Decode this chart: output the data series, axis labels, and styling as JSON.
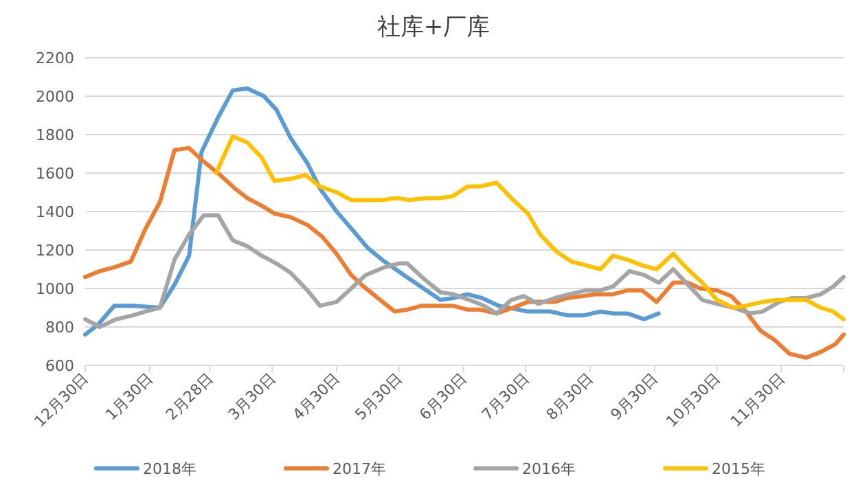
{
  "chart_data": {
    "type": "line",
    "title": "社库+厂库",
    "xlim": [
      "2017-12-30",
      "2018-12-30"
    ],
    "xticks": [
      {
        "value": "2017-12-30",
        "label": "12月30日"
      },
      {
        "value": "2018-01-30",
        "label": "1月30日"
      },
      {
        "value": "2018-02-28",
        "label": "2月28日"
      },
      {
        "value": "2018-03-30",
        "label": "3月30日"
      },
      {
        "value": "2018-04-30",
        "label": "4月30日"
      },
      {
        "value": "2018-05-30",
        "label": "5月30日"
      },
      {
        "value": "2018-06-30",
        "label": "6月30日"
      },
      {
        "value": "2018-07-30",
        "label": "7月30日"
      },
      {
        "value": "2018-08-30",
        "label": "8月30日"
      },
      {
        "value": "2018-09-30",
        "label": "9月30日"
      },
      {
        "value": "2018-10-30",
        "label": "10月30日"
      },
      {
        "value": "2018-11-30",
        "label": "11月30日"
      },
      {
        "value": "2018-12-30",
        "label": null
      }
    ],
    "ylim": [
      600,
      2200
    ],
    "yticks": [
      600,
      800,
      1000,
      1200,
      1400,
      1600,
      1800,
      2000,
      2200
    ],
    "grid": "y",
    "legend": "bottom",
    "line_style": "solid",
    "series": [
      {
        "name": "2018年",
        "color": "#5b9bd5",
        "x": [
          "2017-12-30",
          "2018-01-05",
          "2018-01-13",
          "2018-01-22",
          "2018-02-04",
          "2018-02-11",
          "2018-02-18",
          "2018-02-24",
          "2018-03-04",
          "2018-03-11",
          "2018-03-18",
          "2018-03-26",
          "2018-04-01",
          "2018-04-08",
          "2018-04-16",
          "2018-04-22",
          "2018-04-30",
          "2018-05-08",
          "2018-05-15",
          "2018-05-23",
          "2018-06-04",
          "2018-06-19",
          "2018-06-25",
          "2018-07-02",
          "2018-07-09",
          "2018-07-17",
          "2018-07-31",
          "2018-08-11",
          "2018-08-19",
          "2018-08-27",
          "2018-09-04",
          "2018-09-10",
          "2018-09-17",
          "2018-09-25",
          "2018-10-02"
        ],
        "values": [
          760,
          810,
          910,
          910,
          900,
          1020,
          1170,
          1710,
          1890,
          2030,
          2040,
          2000,
          1930,
          1780,
          1650,
          1520,
          1400,
          1300,
          1210,
          1140,
          1050,
          940,
          950,
          970,
          950,
          910,
          880,
          880,
          860,
          860,
          880,
          870,
          870,
          840,
          870
        ]
      },
      {
        "name": "2017年",
        "color": "#ed7d31",
        "x": [
          "2017-12-30",
          "2018-01-06",
          "2018-01-13",
          "2018-01-21",
          "2018-01-28",
          "2018-02-04",
          "2018-02-11",
          "2018-02-18",
          "2018-02-25",
          "2018-03-05",
          "2018-03-12",
          "2018-03-18",
          "2018-03-25",
          "2018-03-31",
          "2018-04-08",
          "2018-04-16",
          "2018-04-23",
          "2018-04-30",
          "2018-05-07",
          "2018-05-13",
          "2018-05-21",
          "2018-05-28",
          "2018-06-03",
          "2018-06-10",
          "2018-06-18",
          "2018-06-25",
          "2018-07-02",
          "2018-07-08",
          "2018-07-16",
          "2018-07-24",
          "2018-07-31",
          "2018-08-06",
          "2018-08-13",
          "2018-08-19",
          "2018-08-26",
          "2018-09-02",
          "2018-09-10",
          "2018-09-17",
          "2018-09-24",
          "2018-10-01",
          "2018-10-09",
          "2018-10-16",
          "2018-10-22",
          "2018-10-30",
          "2018-11-06",
          "2018-11-13",
          "2018-11-20",
          "2018-11-27",
          "2018-12-04",
          "2018-12-12",
          "2018-12-19",
          "2018-12-26",
          "2018-12-30"
        ],
        "values": [
          1060,
          1090,
          1110,
          1140,
          1310,
          1450,
          1720,
          1730,
          1660,
          1590,
          1520,
          1470,
          1430,
          1390,
          1370,
          1330,
          1270,
          1180,
          1070,
          1010,
          940,
          880,
          890,
          910,
          910,
          910,
          890,
          890,
          870,
          900,
          930,
          930,
          930,
          950,
          960,
          970,
          970,
          990,
          990,
          930,
          1030,
          1030,
          1000,
          990,
          960,
          880,
          780,
          730,
          660,
          640,
          670,
          710,
          760
        ]
      },
      {
        "name": "2016年",
        "color": "#a5a5a5",
        "x": [
          "2017-12-30",
          "2018-01-06",
          "2018-01-14",
          "2018-01-22",
          "2018-01-28",
          "2018-02-04",
          "2018-02-11",
          "2018-02-18",
          "2018-02-25",
          "2018-03-04",
          "2018-03-11",
          "2018-03-18",
          "2018-03-25",
          "2018-04-01",
          "2018-04-08",
          "2018-04-16",
          "2018-04-22",
          "2018-04-30",
          "2018-05-08",
          "2018-05-14",
          "2018-05-23",
          "2018-05-30",
          "2018-06-03",
          "2018-06-11",
          "2018-06-19",
          "2018-06-25",
          "2018-07-03",
          "2018-07-10",
          "2018-07-16",
          "2018-07-23",
          "2018-07-29",
          "2018-08-05",
          "2018-08-13",
          "2018-08-20",
          "2018-08-28",
          "2018-09-04",
          "2018-09-10",
          "2018-09-18",
          "2018-09-25",
          "2018-10-02",
          "2018-10-09",
          "2018-10-16",
          "2018-10-23",
          "2018-10-30",
          "2018-11-07",
          "2018-11-15",
          "2018-11-21",
          "2018-11-29",
          "2018-12-05",
          "2018-12-12",
          "2018-12-19",
          "2018-12-25",
          "2018-12-30"
        ],
        "values": [
          840,
          800,
          840,
          860,
          880,
          900,
          1150,
          1280,
          1380,
          1380,
          1250,
          1220,
          1170,
          1130,
          1080,
          990,
          910,
          930,
          1010,
          1070,
          1110,
          1130,
          1130,
          1050,
          980,
          970,
          940,
          910,
          870,
          940,
          960,
          920,
          950,
          970,
          990,
          990,
          1010,
          1090,
          1070,
          1030,
          1100,
          1020,
          940,
          920,
          900,
          870,
          880,
          930,
          950,
          950,
          970,
          1010,
          1060
        ]
      },
      {
        "name": "2015年",
        "color": "#ffc000",
        "x": [
          "2018-03-03",
          "2018-03-11",
          "2018-03-18",
          "2018-03-25",
          "2018-03-31",
          "2018-04-08",
          "2018-04-15",
          "2018-04-22",
          "2018-04-30",
          "2018-05-07",
          "2018-05-14",
          "2018-05-22",
          "2018-05-29",
          "2018-06-04",
          "2018-06-12",
          "2018-06-19",
          "2018-06-25",
          "2018-07-02",
          "2018-07-08",
          "2018-07-16",
          "2018-07-23",
          "2018-07-31",
          "2018-08-06",
          "2018-08-14",
          "2018-08-21",
          "2018-08-28",
          "2018-09-04",
          "2018-09-10",
          "2018-09-17",
          "2018-09-24",
          "2018-10-01",
          "2018-10-09",
          "2018-10-16",
          "2018-10-23",
          "2018-10-30",
          "2018-11-07",
          "2018-11-13",
          "2018-11-21",
          "2018-11-28",
          "2018-12-05",
          "2018-12-12",
          "2018-12-19",
          "2018-12-25",
          "2018-12-30"
        ],
        "values": [
          1600,
          1790,
          1760,
          1680,
          1560,
          1570,
          1590,
          1530,
          1500,
          1460,
          1460,
          1460,
          1470,
          1460,
          1470,
          1470,
          1480,
          1530,
          1530,
          1550,
          1470,
          1390,
          1280,
          1190,
          1140,
          1120,
          1100,
          1170,
          1150,
          1120,
          1100,
          1180,
          1100,
          1030,
          940,
          900,
          910,
          930,
          940,
          940,
          940,
          900,
          880,
          840
        ]
      }
    ]
  }
}
